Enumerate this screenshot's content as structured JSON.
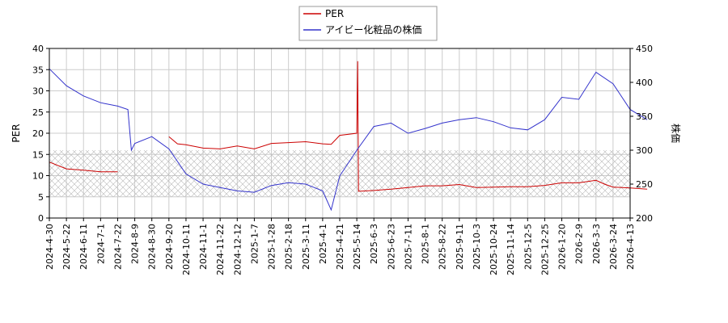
{
  "chart_data": {
    "type": "line",
    "x_tick_labels": [
      "2024-4-30",
      "2024-5-22",
      "2024-6-11",
      "2024-7-1",
      "2024-7-22",
      "2024-8-9",
      "2024-8-30",
      "2024-9-20",
      "2024-10-11",
      "2024-11-1",
      "2024-11-22",
      "2024-12-12",
      "2025-1-7",
      "2025-1-28",
      "2025-2-18",
      "2025-3-11",
      "2025-4-1",
      "2025-4-21",
      "2025-5-14",
      "2025-6-3",
      "2025-6-23",
      "2025-7-11",
      "2025-8-1",
      "2025-8-22",
      "2025-9-11",
      "2025-10-3",
      "2025-10-24",
      "2025-11-14",
      "2025-12-5",
      "2025-12-25",
      "2026-1-20",
      "2026-2-9",
      "2026-3-3",
      "2026-3-24",
      "2026-4-13"
    ],
    "ylabel": "PER",
    "y2label": "株価",
    "ylim": [
      0,
      40
    ],
    "y_ticks": [
      0,
      5,
      10,
      15,
      20,
      25,
      30,
      35,
      40
    ],
    "y2lim": [
      200,
      450
    ],
    "y2_ticks": [
      200,
      250,
      300,
      350,
      400,
      450
    ],
    "band": {
      "from": 5,
      "to": 16
    },
    "grid": true,
    "legend_position": "top-center",
    "series": [
      {
        "name": "PER",
        "color": "#cc0000",
        "axis": "left",
        "points": [
          [
            0,
            13.2
          ],
          [
            1,
            11.6
          ],
          [
            2,
            11.3
          ],
          [
            3,
            10.9
          ],
          [
            4,
            10.9
          ],
          [
            5,
            null
          ],
          [
            6,
            null
          ],
          [
            7,
            19.2
          ],
          [
            7.5,
            17.5
          ],
          [
            8,
            17.3
          ],
          [
            9,
            16.5
          ],
          [
            10,
            16.3
          ],
          [
            11,
            17.0
          ],
          [
            12,
            16.3
          ],
          [
            13,
            17.6
          ],
          [
            14,
            17.8
          ],
          [
            15,
            18.0
          ],
          [
            16,
            17.5
          ],
          [
            16.5,
            17.4
          ],
          [
            17,
            19.5
          ],
          [
            18,
            20.0
          ],
          [
            18.05,
            37.0
          ],
          [
            18.1,
            6.3
          ],
          [
            19,
            6.5
          ],
          [
            20,
            6.8
          ],
          [
            21,
            7.2
          ],
          [
            22,
            7.6
          ],
          [
            23,
            7.6
          ],
          [
            24,
            7.9
          ],
          [
            25,
            7.2
          ],
          [
            26,
            7.3
          ],
          [
            27,
            7.4
          ],
          [
            28,
            7.4
          ],
          [
            29,
            7.7
          ],
          [
            30,
            8.3
          ],
          [
            31,
            8.3
          ],
          [
            32,
            8.9
          ],
          [
            32.5,
            8.0
          ],
          [
            33,
            7.3
          ],
          [
            34,
            7.1
          ],
          [
            35,
            6.8
          ]
        ]
      },
      {
        "name": "アイビー化粧品の株価",
        "color": "#3333cc",
        "axis": "right",
        "points": [
          [
            0,
            420
          ],
          [
            1,
            395
          ],
          [
            2,
            380
          ],
          [
            3,
            370
          ],
          [
            4,
            365
          ],
          [
            4.6,
            360
          ],
          [
            4.8,
            300
          ],
          [
            5,
            310
          ],
          [
            6,
            320
          ],
          [
            7,
            302
          ],
          [
            8,
            265
          ],
          [
            9,
            250
          ],
          [
            10,
            245
          ],
          [
            11,
            240
          ],
          [
            12,
            238
          ],
          [
            13,
            248
          ],
          [
            14,
            252
          ],
          [
            15,
            250
          ],
          [
            16,
            240
          ],
          [
            16.5,
            212
          ],
          [
            17,
            262
          ],
          [
            18,
            300
          ],
          [
            19,
            335
          ],
          [
            20,
            340
          ],
          [
            21,
            325
          ],
          [
            22,
            332
          ],
          [
            23,
            340
          ],
          [
            24,
            345
          ],
          [
            25,
            348
          ],
          [
            26,
            342
          ],
          [
            27,
            333
          ],
          [
            28,
            330
          ],
          [
            29,
            345
          ],
          [
            30,
            378
          ],
          [
            31,
            375
          ],
          [
            32,
            415
          ],
          [
            33,
            398
          ],
          [
            34,
            360
          ],
          [
            35,
            345
          ]
        ]
      }
    ]
  },
  "legend": {
    "entries": [
      "PER",
      "アイビー化粧品の株価"
    ]
  }
}
